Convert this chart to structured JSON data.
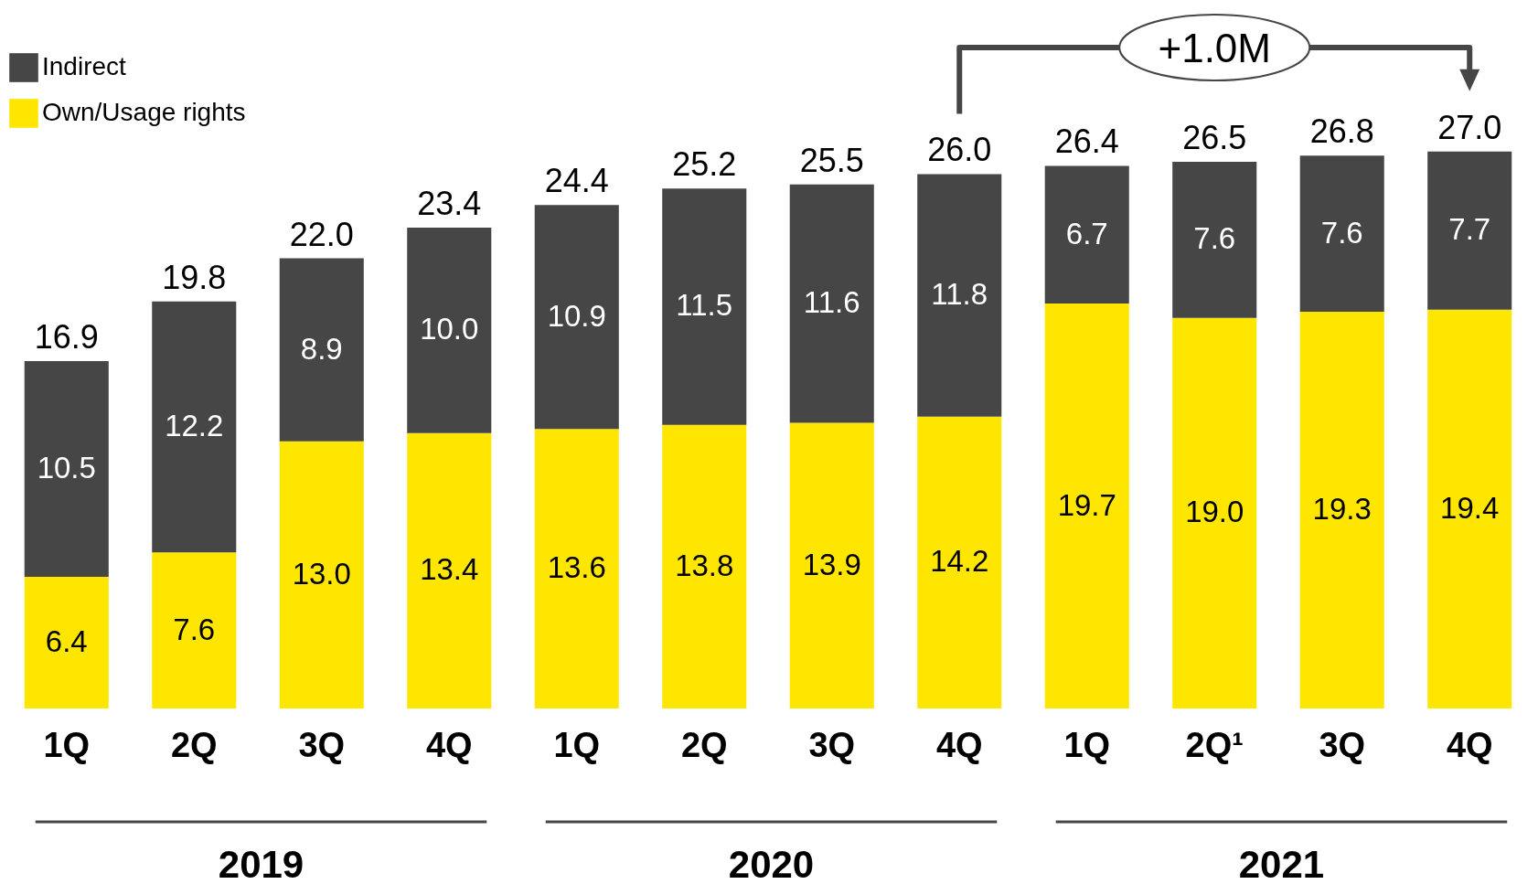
{
  "chart_data": {
    "type": "bar",
    "stacked": true,
    "legend": "top left",
    "categories": [
      "1Q",
      "2Q",
      "3Q",
      "4Q",
      "1Q",
      "2Q",
      "3Q",
      "4Q",
      "1Q",
      "2Q¹",
      "3Q",
      "4Q"
    ],
    "series": [
      {
        "name": "Own/Usage rights",
        "color": "#ffe600",
        "values": [
          6.4,
          7.6,
          13.0,
          13.4,
          13.6,
          13.8,
          13.9,
          14.2,
          19.7,
          19.0,
          19.3,
          19.4
        ],
        "value_labels": [
          "6.4",
          "7.6",
          "13.0",
          "13.4",
          "13.6",
          "13.8",
          "13.9",
          "14.2",
          "19.7",
          "19.0",
          "19.3",
          "19.4"
        ]
      },
      {
        "name": "Indirect",
        "color": "#464646",
        "values": [
          10.5,
          12.2,
          8.9,
          10.0,
          10.9,
          11.5,
          11.6,
          11.8,
          6.7,
          7.6,
          7.6,
          7.7
        ],
        "value_labels": [
          "10.5",
          "12.2",
          "8.9",
          "10.0",
          "10.9",
          "11.5",
          "11.6",
          "11.8",
          "6.7",
          "7.6",
          "7.6",
          "7.7"
        ]
      }
    ],
    "totals": [
      "16.9",
      "19.8",
      "22.0",
      "23.4",
      "24.4",
      "25.2",
      "25.5",
      "26.0",
      "26.4",
      "26.5",
      "26.8",
      "27.0"
    ],
    "annotations": [
      "+1.0M",
      "2019",
      "2020",
      "2021"
    ]
  }
}
